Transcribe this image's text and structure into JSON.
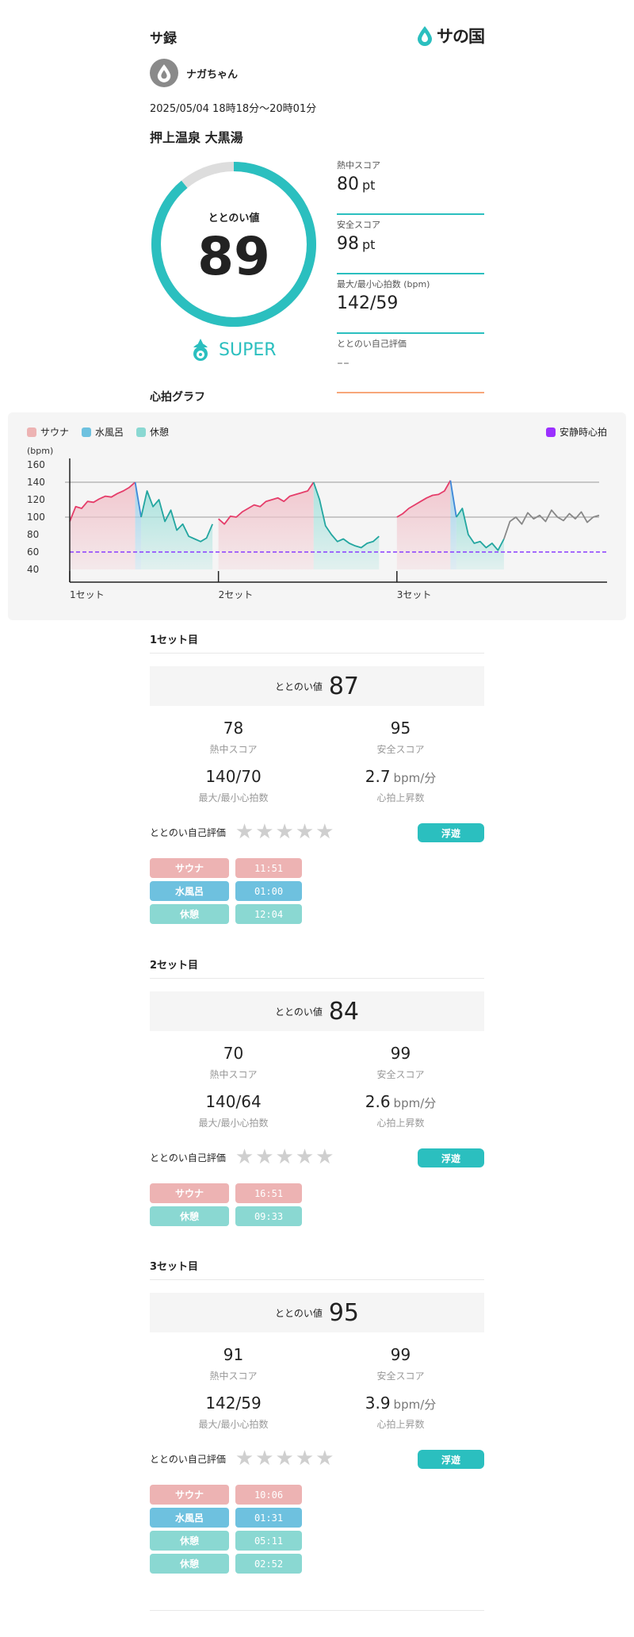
{
  "header": {
    "app_title": "サ録",
    "logo_text": "サの国",
    "logo_icon": "drop-icon"
  },
  "user": {
    "name": "ナガちゃん",
    "avatar_icon": "drop-icon"
  },
  "session": {
    "time": "2025/05/04 18時18分～20時01分",
    "facility": "押上温泉 大黒湯"
  },
  "summary": {
    "gauge_label": "ととのい値",
    "gauge_value": "89",
    "gauge_fraction": 0.89,
    "rank": "SUPER",
    "stats": [
      {
        "label": "熱中スコア",
        "value": "80",
        "unit": "pt"
      },
      {
        "label": "安全スコア",
        "value": "98",
        "unit": "pt"
      },
      {
        "label": "最大/最小心拍数 (bpm)",
        "value": "142/59",
        "unit": ""
      },
      {
        "label": "ととのい自己評価",
        "value": "--",
        "unit": ""
      }
    ]
  },
  "hr_graph": {
    "title": "心拍グラフ",
    "legend": [
      {
        "label": "サウナ",
        "color": "#edb3b3"
      },
      {
        "label": "水風呂",
        "color": "#6ec1df"
      },
      {
        "label": "休憩",
        "color": "#8ad8d2"
      }
    ],
    "resting_label": "安静時心拍",
    "resting_color": "#9b30ff",
    "unit_label": "(bpm)",
    "y_ticks": [
      "160",
      "140",
      "120",
      "100",
      "80",
      "60",
      "40"
    ],
    "set_labels": [
      "1セット",
      "2セット",
      "3セット"
    ]
  },
  "chart_data": {
    "type": "line",
    "ylabel": "(bpm)",
    "ylim": [
      40,
      160
    ],
    "resting_hr": 60,
    "x_unit": "minutes",
    "set_starts": [
      0,
      25,
      55
    ],
    "segments": [
      {
        "phase": "pre",
        "x": [
          0
        ],
        "y": [
          95
        ]
      },
      {
        "phase": "sauna",
        "x": [
          0,
          1,
          2,
          3,
          4,
          5,
          6,
          7,
          8,
          9,
          10,
          11
        ],
        "y": [
          95,
          112,
          110,
          118,
          117,
          121,
          124,
          123,
          127,
          130,
          134,
          140
        ]
      },
      {
        "phase": "mizu",
        "x": [
          11,
          12
        ],
        "y": [
          140,
          100
        ]
      },
      {
        "phase": "rest",
        "x": [
          12,
          13,
          14,
          15,
          16,
          17,
          18,
          19,
          20,
          21,
          22,
          23,
          24
        ],
        "y": [
          100,
          130,
          112,
          120,
          95,
          108,
          85,
          92,
          78,
          75,
          72,
          76,
          92
        ]
      },
      {
        "phase": "sauna",
        "x": [
          25,
          26,
          27,
          28,
          29,
          30,
          31,
          32,
          33,
          34,
          35,
          36,
          37,
          38,
          39,
          40,
          41
        ],
        "y": [
          98,
          92,
          101,
          100,
          106,
          110,
          114,
          112,
          118,
          120,
          122,
          118,
          124,
          126,
          128,
          130,
          140
        ]
      },
      {
        "phase": "rest",
        "x": [
          41,
          42,
          43,
          44,
          45,
          46,
          47,
          48,
          49,
          50,
          51,
          52
        ],
        "y": [
          140,
          120,
          90,
          80,
          72,
          75,
          70,
          67,
          65,
          70,
          72,
          78
        ]
      },
      {
        "phase": "sauna",
        "x": [
          55,
          56,
          57,
          58,
          59,
          60,
          61,
          62,
          63,
          64
        ],
        "y": [
          100,
          104,
          110,
          114,
          118,
          122,
          125,
          126,
          130,
          142
        ]
      },
      {
        "phase": "mizu",
        "x": [
          64,
          65
        ],
        "y": [
          142,
          100
        ]
      },
      {
        "phase": "rest",
        "x": [
          65,
          66,
          67,
          68,
          69,
          70,
          71,
          72,
          73
        ],
        "y": [
          100,
          110,
          80,
          70,
          72,
          65,
          70,
          62,
          75
        ]
      },
      {
        "phase": "post",
        "x": [
          73,
          74,
          75,
          76,
          77,
          78,
          79,
          80,
          81,
          82,
          83,
          84,
          85,
          86,
          87,
          88,
          89
        ],
        "y": [
          75,
          95,
          100,
          92,
          105,
          98,
          102,
          95,
          108,
          100,
          96,
          104,
          98,
          106,
          94,
          100,
          102
        ]
      }
    ]
  },
  "sets": [
    {
      "title": "1セット目",
      "totonoi_label": "ととのい値",
      "totonoi_value": "87",
      "metrics": [
        {
          "value": "78",
          "unit": "",
          "label": "熱中スコア"
        },
        {
          "value": "95",
          "unit": "",
          "label": "安全スコア"
        },
        {
          "value": "140/70",
          "unit": "",
          "label": "最大/最小心拍数"
        },
        {
          "value": "2.7",
          "unit": "bpm/分",
          "label": "心拍上昇数"
        }
      ],
      "eval_label": "ととのい自己評価",
      "rating": 0,
      "badge": "浮遊",
      "phases": [
        {
          "name": "サウナ",
          "time": "11:51",
          "kind": "sauna"
        },
        {
          "name": "水風呂",
          "time": "01:00",
          "kind": "mizu"
        },
        {
          "name": "休憩",
          "time": "12:04",
          "kind": "rest"
        }
      ]
    },
    {
      "title": "2セット目",
      "totonoi_label": "ととのい値",
      "totonoi_value": "84",
      "metrics": [
        {
          "value": "70",
          "unit": "",
          "label": "熱中スコア"
        },
        {
          "value": "99",
          "unit": "",
          "label": "安全スコア"
        },
        {
          "value": "140/64",
          "unit": "",
          "label": "最大/最小心拍数"
        },
        {
          "value": "2.6",
          "unit": "bpm/分",
          "label": "心拍上昇数"
        }
      ],
      "eval_label": "ととのい自己評価",
      "rating": 0,
      "badge": "浮遊",
      "phases": [
        {
          "name": "サウナ",
          "time": "16:51",
          "kind": "sauna"
        },
        {
          "name": "休憩",
          "time": "09:33",
          "kind": "rest"
        }
      ]
    },
    {
      "title": "3セット目",
      "totonoi_label": "ととのい値",
      "totonoi_value": "95",
      "metrics": [
        {
          "value": "91",
          "unit": "",
          "label": "熱中スコア"
        },
        {
          "value": "99",
          "unit": "",
          "label": "安全スコア"
        },
        {
          "value": "142/59",
          "unit": "",
          "label": "最大/最小心拍数"
        },
        {
          "value": "3.9",
          "unit": "bpm/分",
          "label": "心拍上昇数"
        }
      ],
      "eval_label": "ととのい自己評価",
      "rating": 0,
      "badge": "浮遊",
      "phases": [
        {
          "name": "サウナ",
          "time": "10:06",
          "kind": "sauna"
        },
        {
          "name": "水風呂",
          "time": "01:31",
          "kind": "mizu"
        },
        {
          "name": "休憩",
          "time": "05:11",
          "kind": "rest"
        },
        {
          "name": "休憩",
          "time": "02:52",
          "kind": "rest"
        }
      ]
    }
  ]
}
